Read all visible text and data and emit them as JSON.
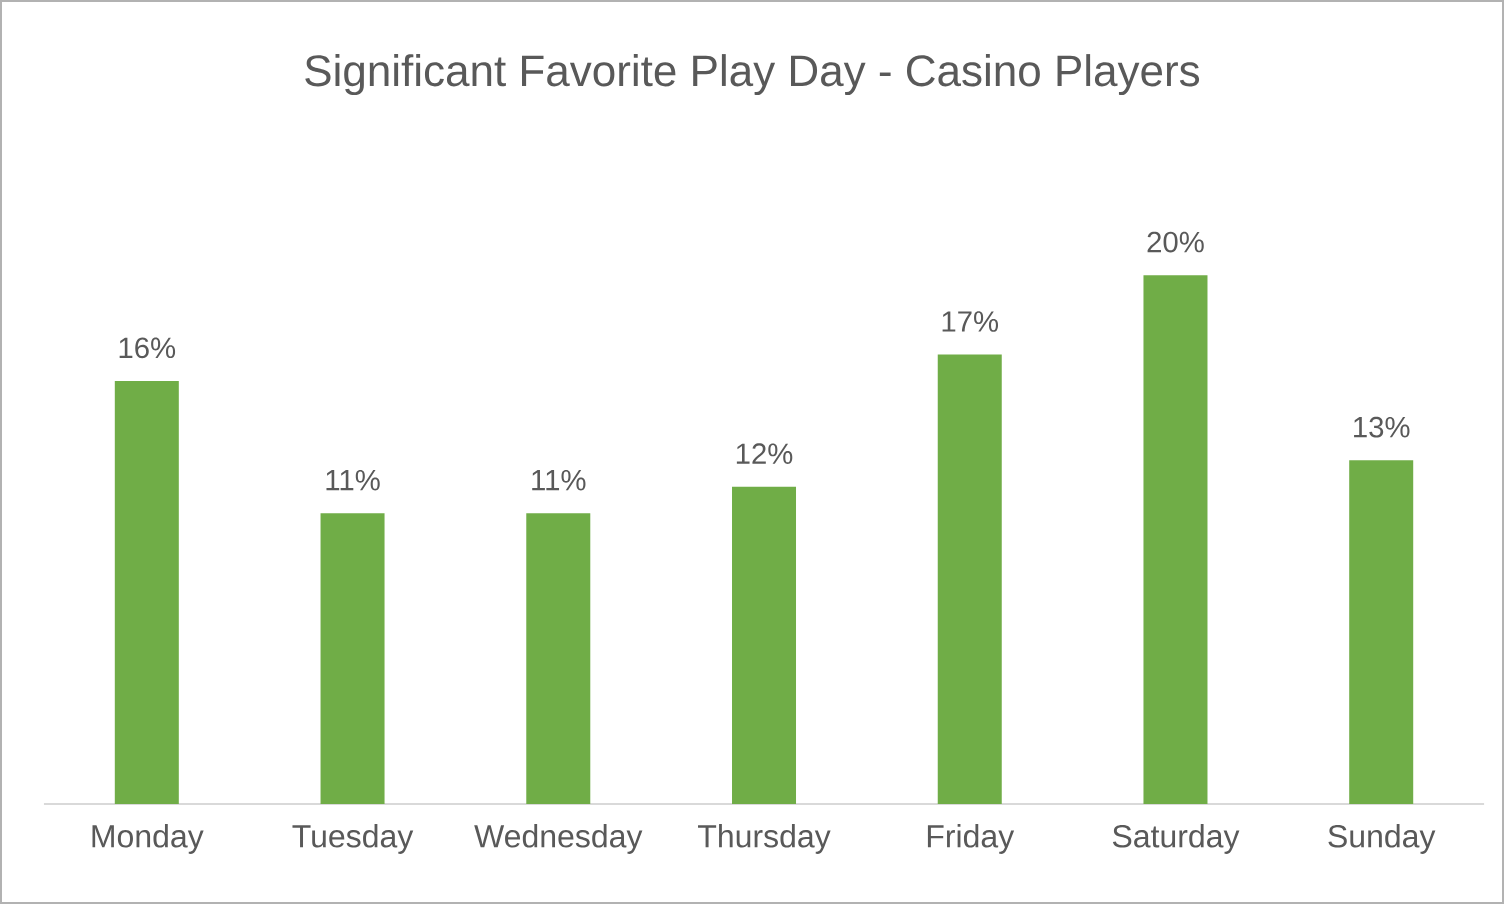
{
  "chart_data": {
    "type": "bar",
    "title": "Significant Favorite Play Day - Casino Players",
    "categories": [
      "Monday",
      "Tuesday",
      "Wednesday",
      "Thursday",
      "Friday",
      "Saturday",
      "Sunday"
    ],
    "values": [
      16,
      11,
      11,
      12,
      17,
      20,
      13
    ],
    "value_labels": [
      "16%",
      "11%",
      "11%",
      "12%",
      "17%",
      "20%",
      "13%"
    ],
    "color": "#70ad47"
  }
}
